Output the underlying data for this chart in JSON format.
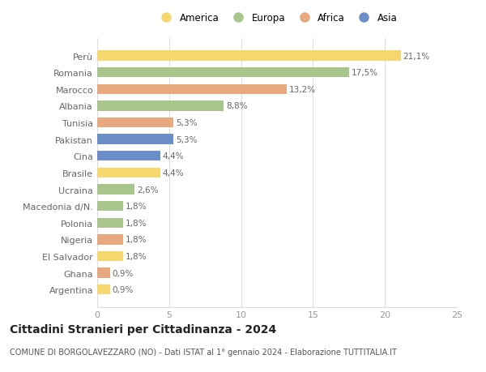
{
  "countries": [
    "Perù",
    "Romania",
    "Marocco",
    "Albania",
    "Tunisia",
    "Pakistan",
    "Cina",
    "Brasile",
    "Ucraina",
    "Macedonia d/N.",
    "Polonia",
    "Nigeria",
    "El Salvador",
    "Ghana",
    "Argentina"
  ],
  "values": [
    21.1,
    17.5,
    13.2,
    8.8,
    5.3,
    5.3,
    4.4,
    4.4,
    2.6,
    1.8,
    1.8,
    1.8,
    1.8,
    0.9,
    0.9
  ],
  "labels": [
    "21,1%",
    "17,5%",
    "13,2%",
    "8,8%",
    "5,3%",
    "5,3%",
    "4,4%",
    "4,4%",
    "2,6%",
    "1,8%",
    "1,8%",
    "1,8%",
    "1,8%",
    "0,9%",
    "0,9%"
  ],
  "continents": [
    "America",
    "Europa",
    "Africa",
    "Europa",
    "Africa",
    "Asia",
    "Asia",
    "America",
    "Europa",
    "Europa",
    "Europa",
    "Africa",
    "America",
    "Africa",
    "America"
  ],
  "colors": {
    "America": "#F5D76E",
    "Europa": "#A8C58C",
    "Africa": "#E8A97E",
    "Asia": "#6B8EC8"
  },
  "legend_order": [
    "America",
    "Europa",
    "Africa",
    "Asia"
  ],
  "title": "Cittadini Stranieri per Cittadinanza - 2024",
  "subtitle": "COMUNE DI BORGOLAVEZZARO (NO) - Dati ISTAT al 1° gennaio 2024 - Elaborazione TUTTITALIA.IT",
  "xlim": [
    0,
    25
  ],
  "xticks": [
    0,
    5,
    10,
    15,
    20,
    25
  ],
  "background_color": "#ffffff",
  "bar_height": 0.6,
  "label_fontsize": 7.5,
  "title_fontsize": 10,
  "subtitle_fontsize": 7,
  "tick_fontsize": 8,
  "ytick_fontsize": 8
}
